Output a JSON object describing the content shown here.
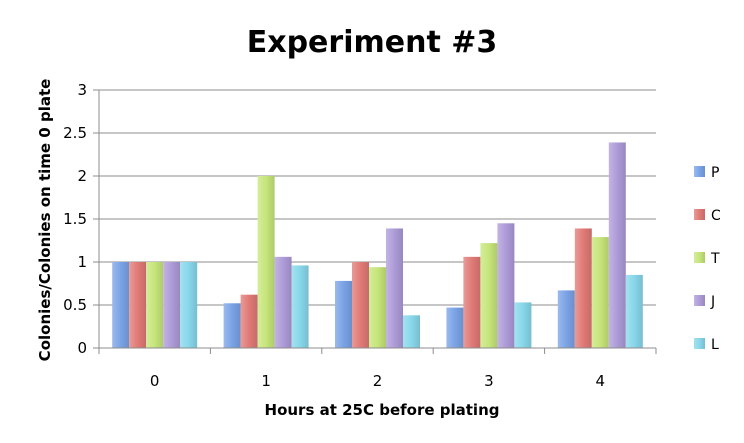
{
  "chart_data": {
    "type": "bar",
    "title": "Experiment #3",
    "xlabel": "Hours at 25C before plating",
    "ylabel": "Colonies/Colonies on time 0 plate",
    "categories": [
      "0",
      "1",
      "2",
      "3",
      "4"
    ],
    "ylim": [
      0,
      3
    ],
    "yticks": [
      "0",
      "0.5",
      "1",
      "1.5",
      "2",
      "2.5",
      "3"
    ],
    "grid": true,
    "legend_position": "right",
    "series": [
      {
        "name": "P",
        "color": "#7aa3e6",
        "values": [
          1.0,
          0.52,
          0.78,
          0.47,
          0.67
        ]
      },
      {
        "name": "C",
        "color": "#e07a76",
        "values": [
          1.0,
          0.62,
          1.0,
          1.06,
          1.39
        ]
      },
      {
        "name": "T",
        "color": "#c6e57a",
        "values": [
          1.0,
          2.0,
          0.94,
          1.22,
          1.29
        ]
      },
      {
        "name": "J",
        "color": "#ad9bd8",
        "values": [
          1.0,
          1.06,
          1.39,
          1.45,
          2.39
        ]
      },
      {
        "name": "L",
        "color": "#87d7ea",
        "values": [
          1.0,
          0.96,
          0.38,
          0.53,
          0.85
        ]
      }
    ]
  }
}
